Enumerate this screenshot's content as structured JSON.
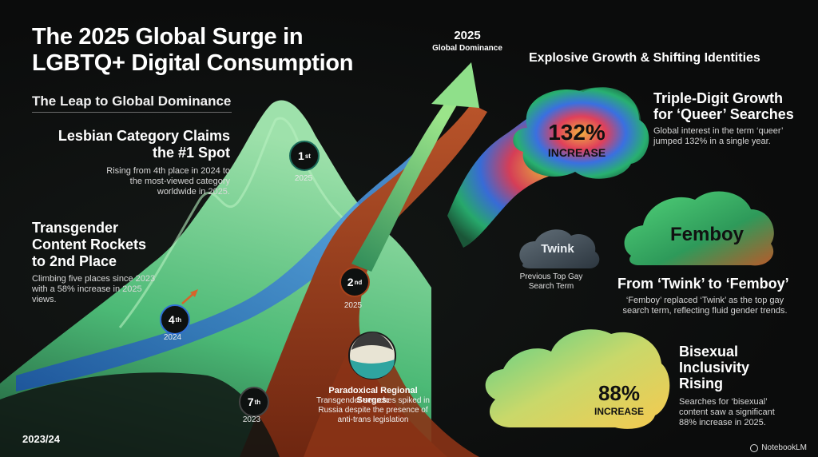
{
  "title": "The 2025 Global Surge in LGBTQ+ Digital Consumption",
  "left_subtitle": "The Leap to Global Dominance",
  "lesbian": {
    "heading": "Lesbian Category Claims the #1 Spot",
    "body": "Rising from 4th place in 2024 to the most-viewed category worldwide in 2025."
  },
  "transgender": {
    "heading": "Transgender Content Rockets to 2nd Place",
    "body": "Climbing five places since 2023 with a 58% increase in 2025 views."
  },
  "ranks": [
    {
      "rank": "1",
      "suffix": "st",
      "year": "2025"
    },
    {
      "rank": "2",
      "suffix": "nd",
      "year": "2025"
    },
    {
      "rank": "4",
      "suffix": "th",
      "year": "2024"
    },
    {
      "rank": "7",
      "suffix": "th",
      "year": "2023"
    }
  ],
  "peak": {
    "year": "2025",
    "label": "Global Dominance"
  },
  "regional": {
    "heading": "Paradoxical Regional Surges:",
    "body": "Transgender searches spiked in Russia despite the presence of anti-trans legislation"
  },
  "start_year": "2023/24",
  "right_subtitle": "Explosive Growth & Shifting Identities",
  "queer": {
    "number": "132%",
    "unit": "INCREASE",
    "heading": "Triple-Digit Growth for ‘Queer’ Searches",
    "body": "Global interest in the term ‘queer’ jumped 132% in a single year."
  },
  "twink": {
    "cloud_label": "Twink",
    "caption": "Previous Top Gay Search Term"
  },
  "femboy": {
    "cloud_label": "Femboy",
    "heading": "From ‘Twink’ to ‘Femboy’",
    "body": "‘Femboy’ replaced ‘Twink’ as the top gay search term, reflecting fluid gender trends."
  },
  "bisexual": {
    "number": "88%",
    "unit": "INCREASE",
    "heading": "Bisexual Inclusivity Rising",
    "body": "Searches for ‘bisexual’ content saw a significant 88% increase in 2025."
  },
  "brand": "NotebookLM",
  "colors": {
    "mint": "#7fe0a0",
    "green": "#3fbf6a",
    "blue": "#2f6fd6",
    "rust": "#a8431c",
    "yellow": "#f2c94c"
  }
}
